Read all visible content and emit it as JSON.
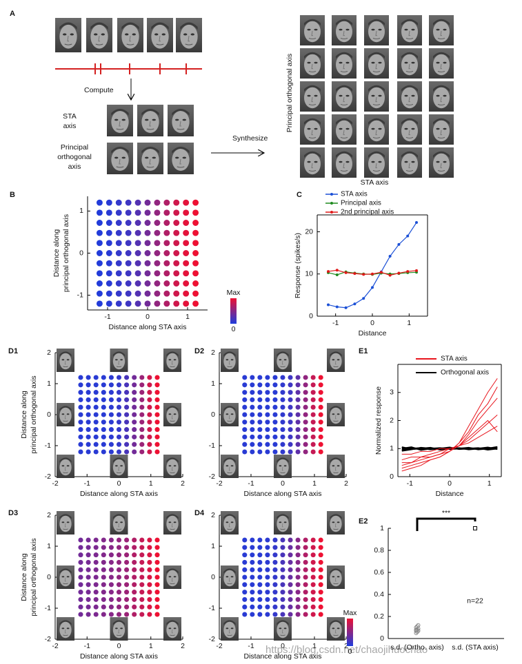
{
  "panel_labels": [
    "A",
    "B",
    "C",
    "D1",
    "D2",
    "D3",
    "D4",
    "E1",
    "E2"
  ],
  "diagram": {
    "compute": "Compute",
    "sta_axis": [
      "STA",
      "axis"
    ],
    "principal_axis": [
      "Principal",
      "orthogonal",
      "axis"
    ],
    "synthesize": "Synthesize",
    "grid_y_label": "Principal orthogonal axis",
    "grid_x_label": "STA axis"
  },
  "chart_data": [
    {
      "type": "dotgrid",
      "xlabel": "Distance along STA axis",
      "ylabel": [
        "Distance along",
        "principal orthogonal axis"
      ],
      "x": [
        -1.2,
        -0.96,
        -0.72,
        -0.48,
        -0.24,
        0,
        0.24,
        0.48,
        0.72,
        0.96,
        1.2
      ],
      "y": [
        -1.2,
        -0.96,
        -0.72,
        -0.48,
        -0.24,
        0,
        0.24,
        0.48,
        0.72,
        0.96,
        1.2
      ],
      "values": [
        0.02,
        0.05,
        0.1,
        0.15,
        0.25,
        0.4,
        0.55,
        0.7,
        0.85,
        0.95,
        1
      ],
      "colormap": [
        "#1f3ddc",
        "#ee1133"
      ],
      "colorbar": {
        "ticks": [
          {
            "value": 1,
            "label": "Max"
          },
          0
        ]
      },
      "xlim": [
        -1.5,
        1.5
      ],
      "ylim": [
        -1.35,
        1.35
      ],
      "xticks": [
        -1,
        0,
        1
      ],
      "yticks": [
        -1,
        0,
        1
      ]
    },
    {
      "type": "line",
      "xlabel": "Distance",
      "ylabel": "Response (spikes/s)",
      "box": true,
      "x": [
        -1.2,
        -0.96,
        -0.72,
        -0.48,
        -0.24,
        0,
        0.24,
        0.48,
        0.72,
        0.96,
        1.2
      ],
      "series": [
        {
          "name": "STA axis",
          "color": "#1a4fd6",
          "values": [
            2.7,
            2.2,
            2.0,
            2.9,
            4.2,
            6.8,
            10.5,
            14.2,
            17.0,
            19.0,
            22.2
          ]
        },
        {
          "name": "Principal axis",
          "color": "#1f8a1f",
          "values": [
            10.3,
            9.8,
            10.5,
            10.2,
            10.0,
            9.9,
            10.2,
            10.0,
            10.1,
            10.3,
            10.4
          ]
        },
        {
          "name": "2nd principal axis",
          "color": "#e01a1a",
          "values": [
            10.6,
            10.9,
            10.3,
            10.1,
            9.9,
            10.0,
            10.4,
            9.7,
            10.2,
            10.6,
            10.8
          ]
        }
      ],
      "xlim": [
        -1.5,
        1.5
      ],
      "ylim": [
        0,
        24
      ],
      "xticks": [
        -1,
        0,
        1
      ],
      "yticks": [
        0,
        10,
        20
      ]
    },
    {
      "type": "dotgrid",
      "xlabel": "Distance along STA axis",
      "ylabel": [
        "Distance along",
        "principal orthogonal axis"
      ],
      "x": [
        -1.2,
        -0.96,
        -0.72,
        -0.48,
        -0.24,
        0,
        0.24,
        0.48,
        0.72,
        0.96,
        1.2
      ],
      "y": [
        -1.2,
        -0.96,
        -0.72,
        -0.48,
        -0.24,
        0,
        0.24,
        0.48,
        0.72,
        0.96,
        1.2
      ],
      "values": [
        0.05,
        0.05,
        0.05,
        0.05,
        0.06,
        0.1,
        0.2,
        0.4,
        0.6,
        0.85,
        1
      ],
      "colormap": [
        "#1f3ddc",
        "#ee1133"
      ],
      "xlim": [
        -2,
        2
      ],
      "ylim": [
        -2,
        2
      ],
      "xticks": [
        -2,
        -1,
        0,
        1,
        2
      ],
      "yticks": [
        -2,
        -1,
        0,
        1,
        2
      ]
    },
    {
      "type": "dotgrid",
      "xlabel": "Distance along STA axis",
      "x": [
        -1.2,
        -0.96,
        -0.72,
        -0.48,
        -0.24,
        0,
        0.24,
        0.48,
        0.72,
        0.96,
        1.2
      ],
      "y": [
        -1.2,
        -0.96,
        -0.72,
        -0.48,
        -0.24,
        0,
        0.24,
        0.48,
        0.72,
        0.96,
        1.2
      ],
      "values": [
        0.05,
        0.05,
        0.05,
        0.05,
        0.05,
        0.08,
        0.15,
        0.3,
        0.55,
        0.8,
        1
      ],
      "colormap": [
        "#1f3ddc",
        "#ee1133"
      ],
      "xlim": [
        -2,
        2
      ],
      "ylim": [
        -2,
        2
      ],
      "xticks": [
        -2,
        -1,
        0,
        1,
        2
      ],
      "yticks": [
        -2,
        -1,
        0,
        1,
        2
      ]
    },
    {
      "type": "dotgrid",
      "xlabel": "Distance along STA axis",
      "ylabel": [
        "Distance along",
        "principal orthogonal axis"
      ],
      "x": [
        -1.2,
        -0.96,
        -0.72,
        -0.48,
        -0.24,
        0,
        0.24,
        0.48,
        0.72,
        0.96,
        1.2
      ],
      "y": [
        -1.2,
        -0.96,
        -0.72,
        -0.48,
        -0.24,
        0,
        0.24,
        0.48,
        0.72,
        0.96,
        1.2
      ],
      "values": [
        0.4,
        0.42,
        0.45,
        0.48,
        0.5,
        0.55,
        0.6,
        0.7,
        0.8,
        0.9,
        1
      ],
      "colormap": [
        "#1f3ddc",
        "#ee1133"
      ],
      "xlim": [
        -2,
        2
      ],
      "ylim": [
        -2,
        2
      ],
      "xticks": [
        -2,
        -1,
        0,
        1,
        2
      ],
      "yticks": [
        -2,
        -1,
        0,
        1,
        2
      ]
    },
    {
      "type": "dotgrid",
      "xlabel": "Distance along STA axis",
      "x": [
        -1.2,
        -0.96,
        -0.72,
        -0.48,
        -0.24,
        0,
        0.24,
        0.48,
        0.72,
        0.96,
        1.2
      ],
      "y": [
        -1.2,
        -0.96,
        -0.72,
        -0.48,
        -0.24,
        0,
        0.24,
        0.48,
        0.72,
        0.96,
        1.2
      ],
      "values": [
        0.05,
        0.05,
        0.05,
        0.06,
        0.1,
        0.2,
        0.35,
        0.5,
        0.7,
        0.85,
        1
      ],
      "colormap": [
        "#1f3ddc",
        "#ee1133"
      ],
      "colorbar": {
        "ticks": [
          {
            "value": 1,
            "label": "Max"
          },
          0
        ]
      },
      "xlim": [
        -2,
        2
      ],
      "ylim": [
        -2,
        2
      ],
      "xticks": [
        -2,
        -1,
        0,
        1,
        2
      ],
      "yticks": [
        -2,
        -1,
        0,
        1,
        2
      ]
    },
    {
      "type": "multiline",
      "xlabel": "Distance",
      "ylabel": "Normalized response",
      "box": true,
      "x": [
        -1.2,
        -0.96,
        -0.72,
        -0.48,
        -0.24,
        0,
        0.24,
        0.48,
        0.72,
        0.96,
        1.2
      ],
      "groups": [
        {
          "name": "STA axis",
          "color": "#e8141c",
          "lines": [
            [
              0.3,
              0.4,
              0.5,
              0.6,
              0.7,
              0.9,
              1.2,
              1.8,
              2.4,
              3.0,
              3.5
            ],
            [
              0.5,
              0.5,
              0.6,
              0.7,
              0.8,
              0.9,
              1.1,
              1.5,
              2.0,
              2.4,
              2.8
            ],
            [
              0.6,
              0.7,
              0.7,
              0.8,
              0.9,
              1.0,
              1.1,
              1.3,
              1.6,
              1.9,
              2.2
            ],
            [
              0.4,
              0.5,
              0.7,
              0.7,
              0.8,
              1.0,
              1.1,
              1.4,
              1.7,
              2.0,
              1.6
            ],
            [
              0.8,
              0.8,
              0.9,
              0.9,
              1.0,
              1.0,
              1.1,
              1.2,
              1.4,
              1.6,
              1.8
            ],
            [
              0.2,
              0.3,
              0.4,
              0.6,
              0.7,
              0.9,
              1.2,
              1.6,
              2.2,
              2.6,
              3.2
            ]
          ]
        },
        {
          "name": "Orthogonal axis",
          "color": "#000000",
          "lines": [
            [
              1.0,
              1.05,
              0.95,
              1.0,
              1.02,
              0.98,
              1.0,
              1.03,
              0.97,
              1.0,
              1.05
            ],
            [
              0.95,
              1.0,
              1.02,
              0.97,
              1.0,
              1.04,
              0.98,
              1.0,
              1.02,
              0.96,
              1.0
            ],
            [
              1.05,
              0.98,
              1.0,
              1.03,
              0.96,
              1.0,
              1.02,
              0.97,
              1.0,
              1.04,
              0.98
            ],
            [
              0.92,
              0.97,
              1.03,
              1.0,
              0.98,
              1.01,
              1.0,
              1.02,
              0.98,
              1.0,
              1.06
            ]
          ]
        }
      ],
      "xlim": [
        -1.3,
        1.3
      ],
      "ylim": [
        0,
        4
      ],
      "xticks": [
        -1,
        0,
        1
      ],
      "yticks": [
        0,
        1,
        2,
        3
      ]
    },
    {
      "type": "strip",
      "categories": [
        "s.d. (Ortho. axis)",
        "s.d. (STA axis)"
      ],
      "groups": [
        [
          0.05,
          0.06,
          0.07,
          0.08,
          0.08,
          0.09,
          0.1,
          0.11,
          0.12,
          0.07
        ],
        [
          1,
          1,
          1,
          1,
          1,
          1
        ]
      ],
      "colors": [
        "#888888",
        "#000000"
      ],
      "significance": "***",
      "n_label": "n=22",
      "ylim": [
        0,
        1
      ],
      "yticks": [
        0,
        0.2,
        0.4,
        0.6,
        0.8,
        1
      ]
    }
  ],
  "watermark": "https://blog.csdn.net/chaojihuochao"
}
